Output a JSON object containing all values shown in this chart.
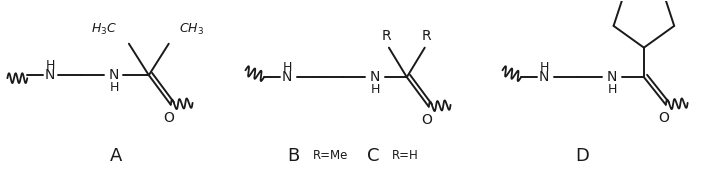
{
  "background_color": "#ffffff",
  "figsize": [
    7.19,
    1.75
  ],
  "dpi": 100,
  "line_color": "#1a1a1a",
  "line_width": 1.4,
  "font_color": "#1a1a1a",
  "label_A": "A",
  "label_B": "B",
  "label_C": "C",
  "label_D": "D",
  "label_B_sub": "R=Me",
  "label_C_sub": "R=H",
  "label_H3C": "$H_3C$",
  "label_CH3": "$CH_3$",
  "label_R": "R",
  "label_N": "N",
  "label_H": "H",
  "label_O": "O"
}
